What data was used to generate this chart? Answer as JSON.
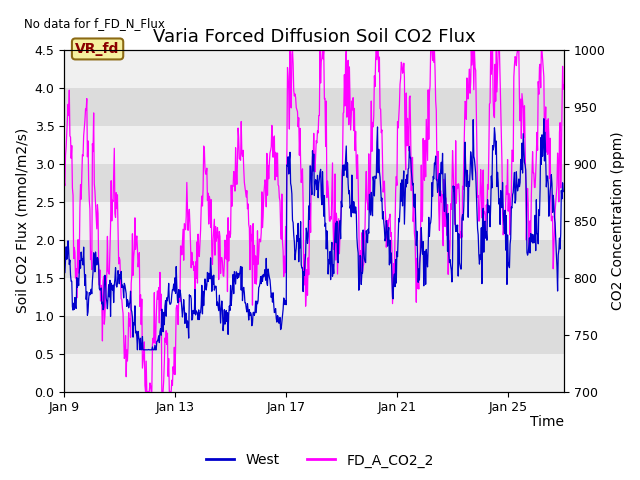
{
  "title": "Varia Forced Diffusion Soil CO2 Flux",
  "no_data_text": "No data for f_FD_N_Flux",
  "vr_fd_label": "VR_fd",
  "xlabel": "Time",
  "ylabel_left": "Soil CO2 Flux (mmol/m2/s)",
  "ylabel_right": "CO2 Concentration (ppm)",
  "ylim_left": [
    0.0,
    4.5
  ],
  "ylim_right": [
    700,
    1000
  ],
  "yticks_left": [
    0.0,
    0.5,
    1.0,
    1.5,
    2.0,
    2.5,
    3.0,
    3.5,
    4.0,
    4.5
  ],
  "yticks_right": [
    700,
    750,
    800,
    850,
    900,
    950,
    1000
  ],
  "xtick_labels": [
    "Jan 9",
    "Jan 13",
    "Jan 17",
    "Jan 21",
    "Jan 25"
  ],
  "color_blue": "#0000cc",
  "color_magenta": "#ff00ff",
  "legend_labels": [
    "West",
    "FD_A_CO2_2"
  ],
  "background_color": "#ffffff",
  "plot_bg_color": "#f0f0f0",
  "band_light": "#f0f0f0",
  "band_dark": "#dcdcdc",
  "title_fontsize": 13,
  "axis_label_fontsize": 10,
  "tick_fontsize": 9
}
